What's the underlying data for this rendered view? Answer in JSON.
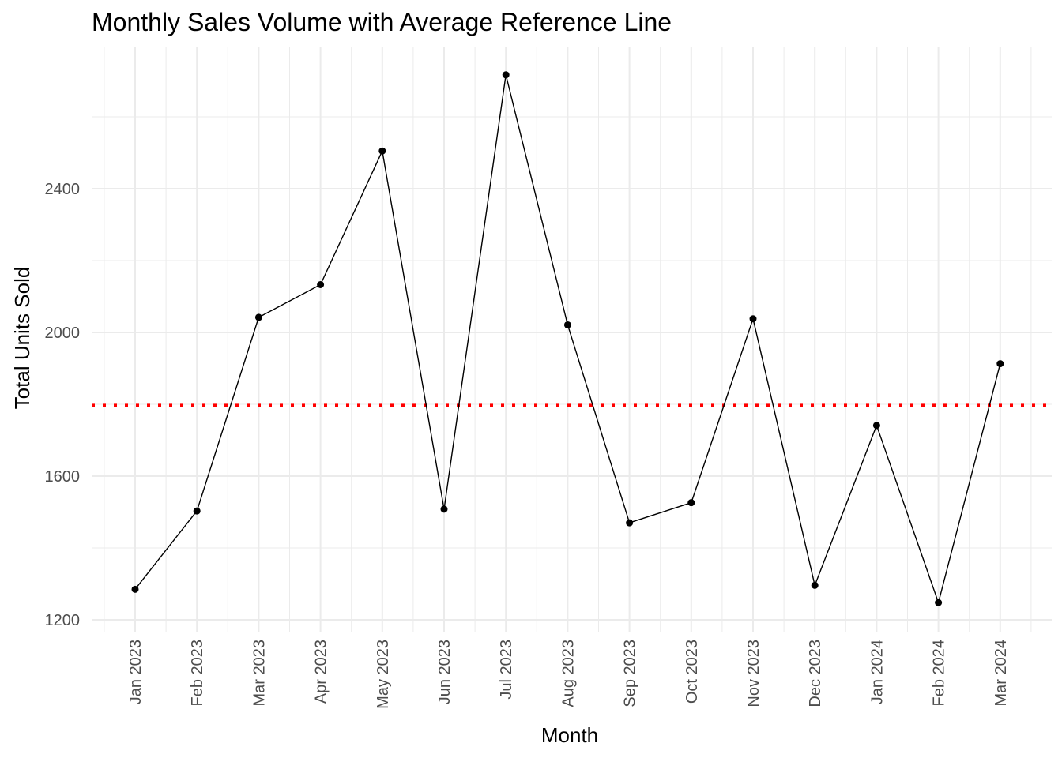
{
  "chart_data": {
    "type": "line",
    "title": "Monthly Sales Volume with Average Reference Line",
    "xlabel": "Month",
    "ylabel": "Total Units Sold",
    "categories": [
      "Jan 2023",
      "Feb 2023",
      "Mar 2023",
      "Apr 2023",
      "May 2023",
      "Jun 2023",
      "Jul 2023",
      "Aug 2023",
      "Sep 2023",
      "Oct 2023",
      "Nov 2023",
      "Dec 2023",
      "Jan 2024",
      "Feb 2024",
      "Mar 2024"
    ],
    "series": [
      {
        "values": [
          1285,
          1503,
          2042,
          2133,
          2505,
          1508,
          2717,
          2021,
          1470,
          1526,
          2038,
          1296,
          1741,
          1248,
          1913
        ]
      }
    ],
    "reference_line": {
      "value": 1797,
      "style": "dotted",
      "color": "#ff0000"
    },
    "y_ticks": [
      1200,
      1600,
      2000,
      2400
    ],
    "y_tick_labels": [
      "1200",
      "1600",
      "2000",
      "2400"
    ],
    "ylim": [
      1175,
      2780
    ],
    "grid": true,
    "line_color": "#000000",
    "point_color": "#000000",
    "grid_color": "#ebebeb"
  }
}
